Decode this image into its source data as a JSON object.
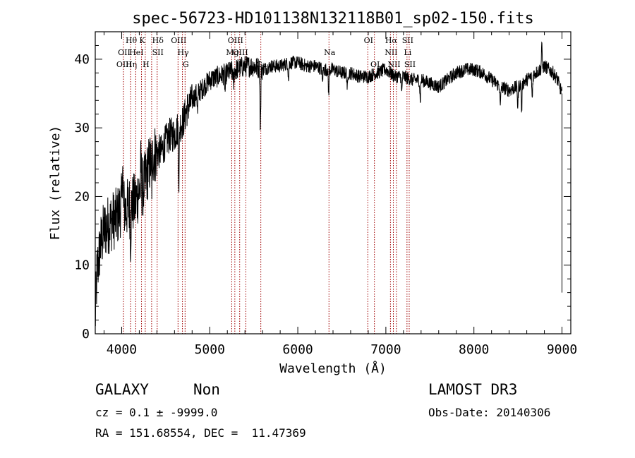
{
  "chart_data": {
    "type": "line",
    "title": "spec-56723-HD101138N132118B01_sp02-150.fits",
    "xlabel": "Wavelength (Å)",
    "ylabel": "Flux (relative)",
    "xlim": [
      3700,
      9100
    ],
    "ylim": [
      0,
      44
    ],
    "xticks": [
      4000,
      5000,
      6000,
      7000,
      8000,
      9000
    ],
    "yticks": [
      0,
      10,
      20,
      30,
      40
    ],
    "series": [
      {
        "name": "spectrum",
        "anchors": [
          [
            3700,
            2
          ],
          [
            3720,
            9
          ],
          [
            3760,
            13
          ],
          [
            3800,
            15
          ],
          [
            3850,
            16
          ],
          [
            3900,
            16.5
          ],
          [
            3950,
            17
          ],
          [
            4000,
            19
          ],
          [
            4050,
            18
          ],
          [
            4100,
            19
          ],
          [
            4150,
            19
          ],
          [
            4200,
            21
          ],
          [
            4250,
            21.5
          ],
          [
            4300,
            24
          ],
          [
            4350,
            26
          ],
          [
            4400,
            26.5
          ],
          [
            4450,
            26.5
          ],
          [
            4500,
            28
          ],
          [
            4550,
            29
          ],
          [
            4600,
            29
          ],
          [
            4640,
            30
          ],
          [
            4700,
            31
          ],
          [
            4750,
            33
          ],
          [
            4800,
            34
          ],
          [
            4850,
            35
          ],
          [
            4900,
            35.5
          ],
          [
            5000,
            37
          ],
          [
            5100,
            37.5
          ],
          [
            5200,
            38
          ],
          [
            5300,
            38.5
          ],
          [
            5400,
            39
          ],
          [
            5500,
            39
          ],
          [
            5600,
            38.5
          ],
          [
            5700,
            39
          ],
          [
            5800,
            39
          ],
          [
            5900,
            39.5
          ],
          [
            6000,
            39.5
          ],
          [
            6100,
            39
          ],
          [
            6200,
            39
          ],
          [
            6300,
            38.5
          ],
          [
            6400,
            38.5
          ],
          [
            6500,
            38
          ],
          [
            6600,
            38
          ],
          [
            6700,
            37.5
          ],
          [
            6800,
            37.5
          ],
          [
            6900,
            38
          ],
          [
            7000,
            38.5
          ],
          [
            7100,
            37.5
          ],
          [
            7200,
            37.5
          ],
          [
            7300,
            37
          ],
          [
            7400,
            37
          ],
          [
            7500,
            36.5
          ],
          [
            7600,
            36
          ],
          [
            7700,
            37
          ],
          [
            7800,
            38
          ],
          [
            7900,
            38.5
          ],
          [
            8000,
            38.5
          ],
          [
            8100,
            38
          ],
          [
            8200,
            37
          ],
          [
            8300,
            36
          ],
          [
            8400,
            35.5
          ],
          [
            8500,
            36
          ],
          [
            8600,
            37
          ],
          [
            8700,
            38
          ],
          [
            8800,
            39
          ],
          [
            8900,
            38
          ],
          [
            8950,
            37
          ],
          [
            9000,
            35
          ]
        ],
        "dips": [
          [
            4101,
            5
          ],
          [
            4340,
            4
          ],
          [
            4650,
            8
          ],
          [
            4862,
            3
          ],
          [
            5175,
            2.5
          ],
          [
            5270,
            2
          ],
          [
            5575,
            9
          ],
          [
            5895,
            2.5
          ],
          [
            6280,
            2
          ],
          [
            6350,
            3.5
          ],
          [
            6563,
            2.5
          ],
          [
            7180,
            2.5
          ],
          [
            7390,
            3
          ],
          [
            8300,
            3
          ],
          [
            8498,
            3
          ],
          [
            8542,
            4
          ],
          [
            8662,
            3.5
          ]
        ],
        "spikes": [
          [
            4010,
            7
          ],
          [
            4220,
            4
          ],
          [
            8770,
            4
          ]
        ]
      }
    ],
    "lines": [
      {
        "wavelength": 4020,
        "labels": [
          [
            1,
            "OII"
          ],
          [
            2,
            "OIII"
          ]
        ]
      },
      {
        "wavelength": 4101,
        "labels": [
          [
            0,
            "Hθ"
          ],
          [
            2,
            "Hη"
          ]
        ]
      },
      {
        "wavelength": 4160,
        "labels": [
          [
            1,
            "HeI"
          ]
        ]
      },
      {
        "wavelength": 4225,
        "labels": [
          [
            0,
            "K"
          ]
        ]
      },
      {
        "wavelength": 4268,
        "labels": [
          [
            2,
            "H"
          ]
        ]
      },
      {
        "wavelength": 4340,
        "labels": []
      },
      {
        "wavelength": 4403,
        "labels": [
          [
            0,
            "Hδ"
          ],
          [
            1,
            "SII"
          ]
        ]
      },
      {
        "wavelength": 4640,
        "labels": [
          [
            0,
            "OIII"
          ]
        ]
      },
      {
        "wavelength": 4690,
        "labels": [
          [
            1,
            "Hγ"
          ]
        ]
      },
      {
        "wavelength": 4720,
        "labels": [
          [
            2,
            "G"
          ]
        ]
      },
      {
        "wavelength": 5250,
        "labels": [
          [
            1,
            "Mg"
          ]
        ]
      },
      {
        "wavelength": 5285,
        "labels": [
          [
            0,
            "OIII"
          ]
        ]
      },
      {
        "wavelength": 5340,
        "labels": [
          [
            1,
            "OIII"
          ]
        ]
      },
      {
        "wavelength": 5410,
        "labels": []
      },
      {
        "wavelength": 5580,
        "labels": [
          [
            2,
            "Ca"
          ]
        ]
      },
      {
        "wavelength": 6354,
        "labels": [
          [
            1,
            "Na"
          ]
        ]
      },
      {
        "wavelength": 6795,
        "labels": [
          [
            0,
            "OI"
          ]
        ]
      },
      {
        "wavelength": 6870,
        "labels": [
          [
            2,
            "OI"
          ]
        ]
      },
      {
        "wavelength": 7052,
        "labels": [
          [
            0,
            "Hα"
          ],
          [
            1,
            "NII"
          ]
        ]
      },
      {
        "wavelength": 7085,
        "labels": [
          [
            2,
            "NII"
          ]
        ]
      },
      {
        "wavelength": 7120,
        "labels": []
      },
      {
        "wavelength": 7240,
        "labels": [
          [
            0,
            "SII"
          ],
          [
            1,
            "Li"
          ]
        ]
      },
      {
        "wavelength": 7265,
        "labels": [
          [
            2,
            "SII"
          ]
        ]
      }
    ]
  },
  "footer": {
    "object_class": "GALAXY",
    "subclass": "Non",
    "survey": "LAMOST DR3",
    "redshift": "cz = 0.1 ± -9999.0",
    "obs_date": "Obs-Date: 20140306",
    "coords": "RA = 151.68554, DEC =  11.47369"
  }
}
